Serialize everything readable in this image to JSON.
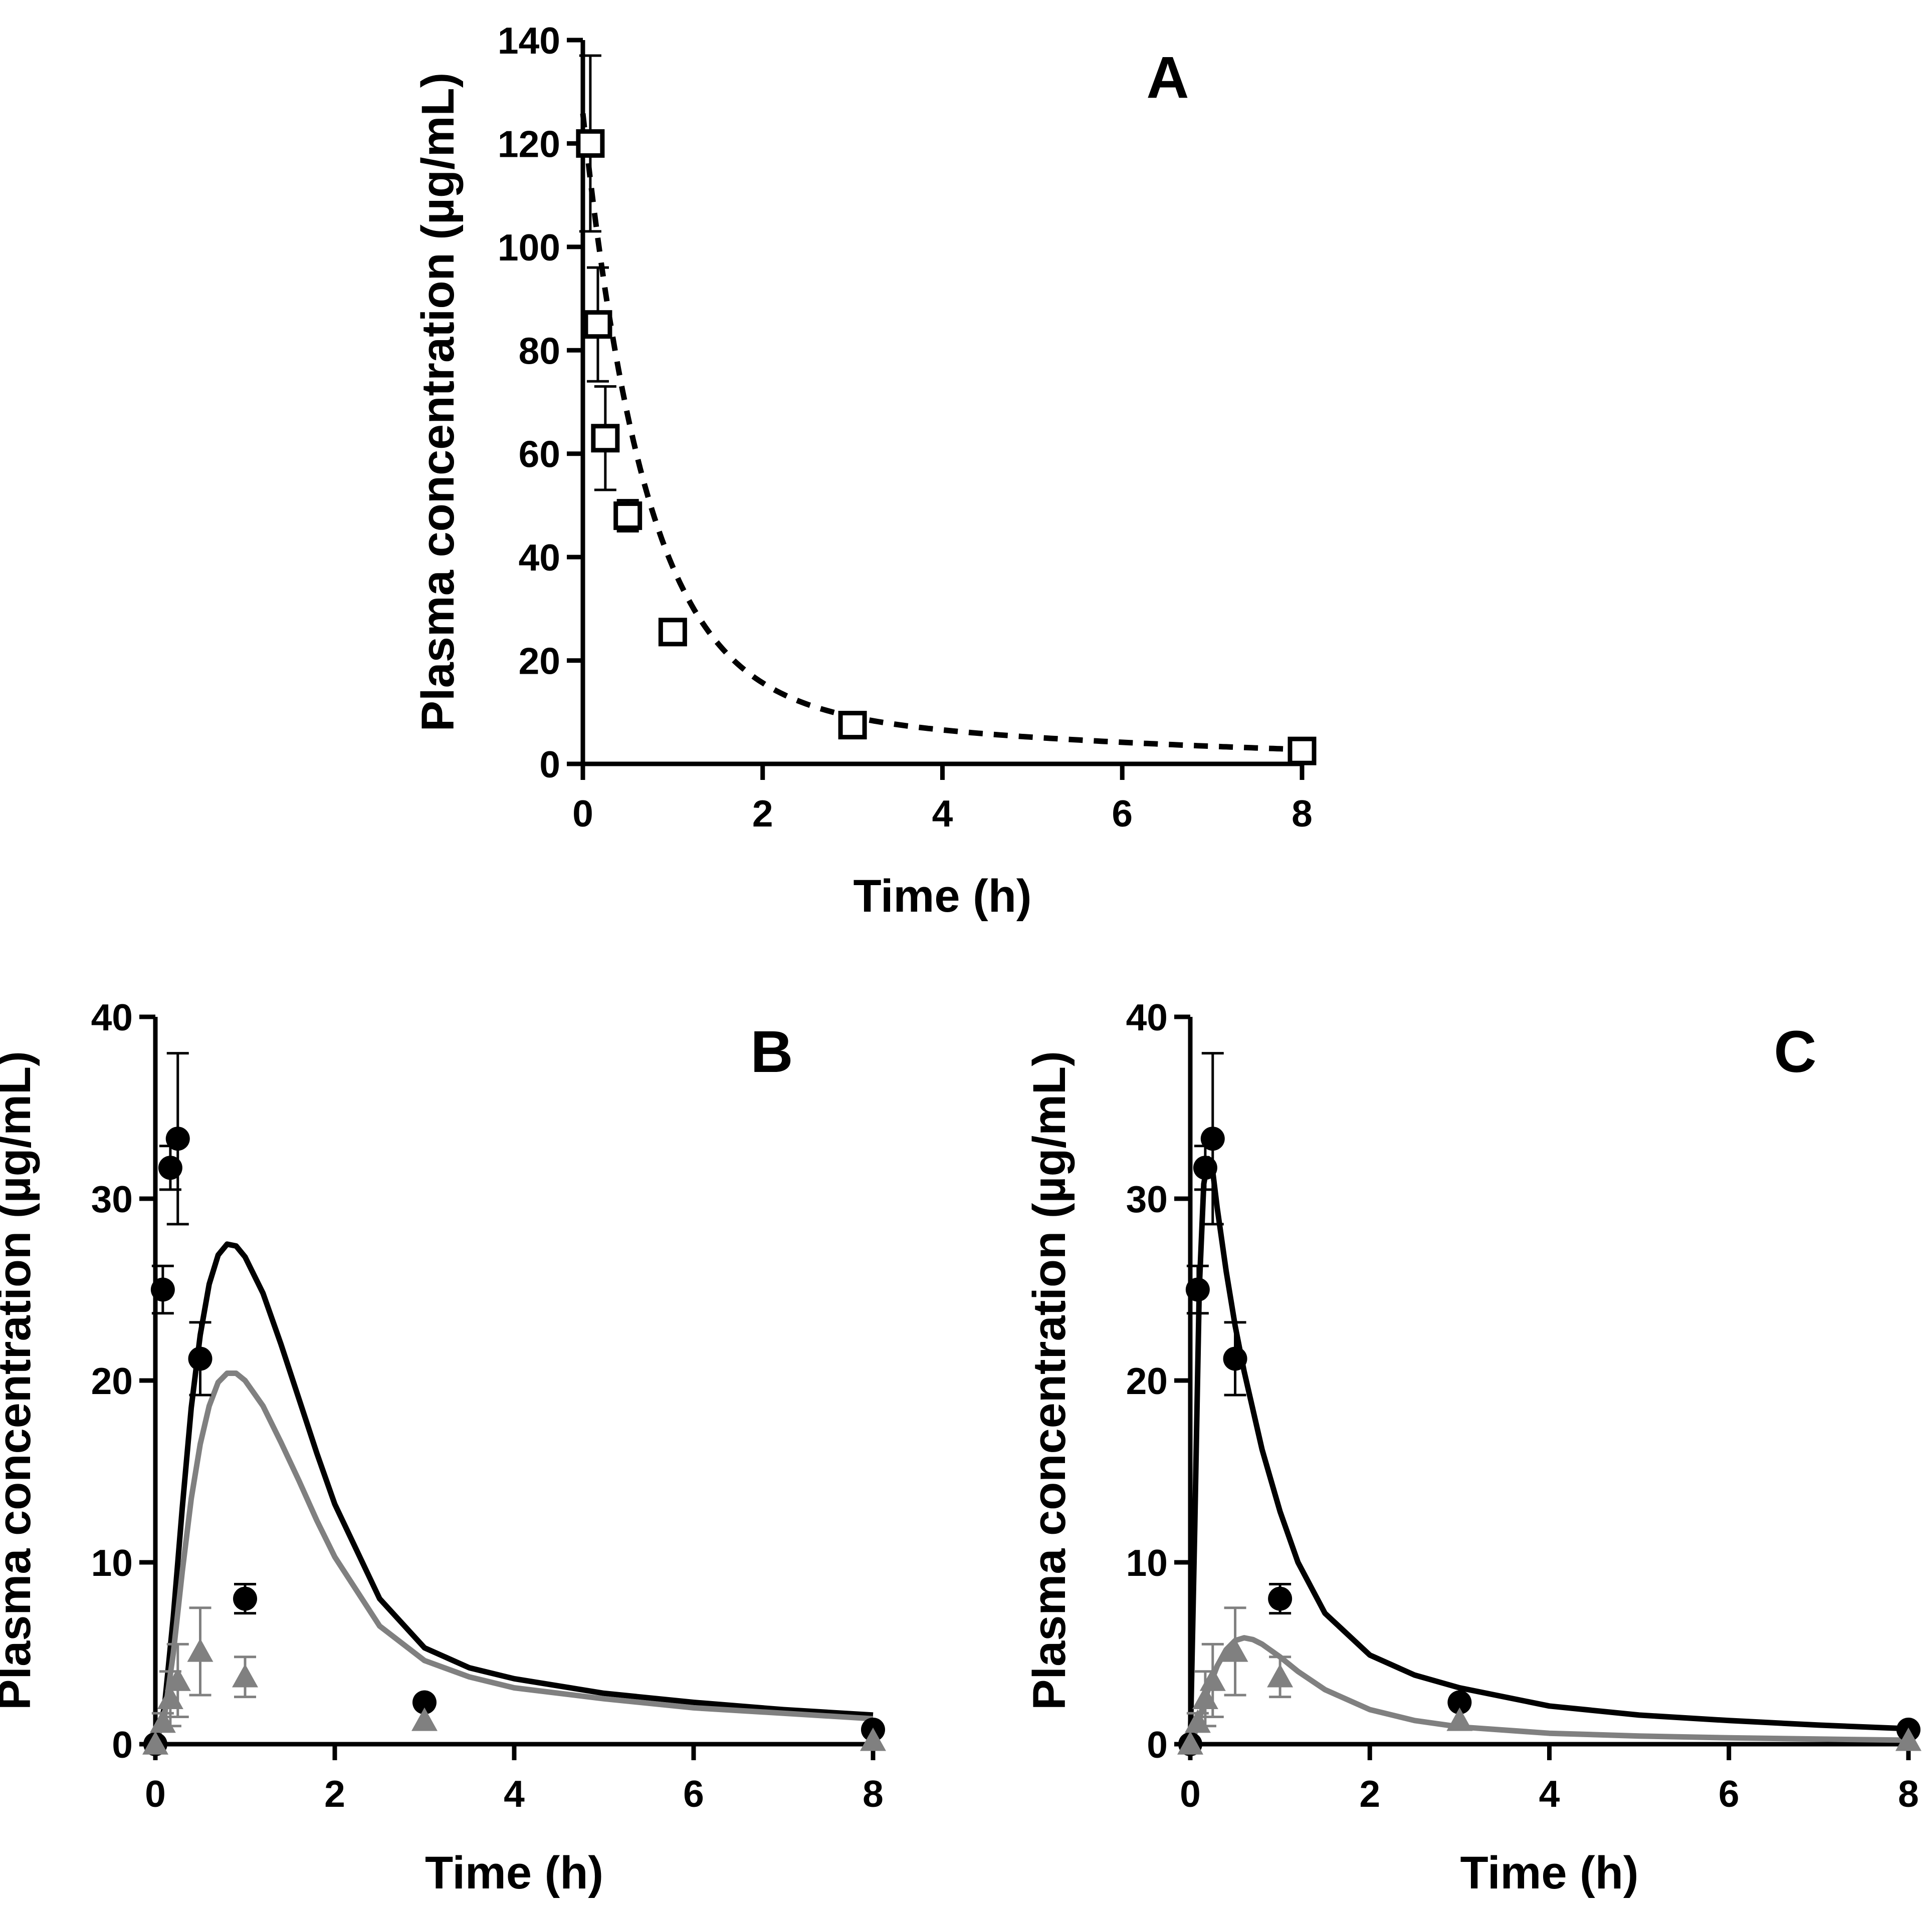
{
  "figure": {
    "description_free": true,
    "colors": {
      "black": "#000000",
      "grey": "#808080"
    }
  },
  "chart_data": [
    {
      "panel": "A",
      "type": "scatter",
      "title": "A",
      "xlabel": "Time (h)",
      "ylabel": "Plasma concentration (µg/mL)",
      "xlim": [
        0,
        8
      ],
      "ylim": [
        0,
        140
      ],
      "xticks": [
        0,
        2,
        4,
        6,
        8
      ],
      "yticks": [
        0,
        20,
        40,
        60,
        80,
        100,
        120,
        140
      ],
      "series": [
        {
          "name": "observed",
          "marker": "square-open",
          "color": "#000000",
          "x": [
            0.083,
            0.167,
            0.25,
            0.5,
            1,
            3,
            8
          ],
          "y": [
            120,
            85,
            63,
            48,
            25.5,
            7.5,
            2.5
          ],
          "err": [
            17,
            11,
            10,
            3,
            1.5,
            1,
            0.5
          ]
        },
        {
          "name": "fit",
          "line": "dashed",
          "color": "#000000",
          "curve": {
            "model": "biexponential",
            "terms": [
              {
                "A": 112,
                "k": 1.43
              },
              {
                "A": 13.8,
                "k": 0.2
              }
            ]
          }
        }
      ]
    },
    {
      "panel": "B",
      "type": "scatter",
      "title": "B",
      "xlabel": "Time (h)",
      "ylabel": "Plasma concentration (µg/mL)",
      "xlim": [
        0,
        8
      ],
      "ylim": [
        0,
        40
      ],
      "xticks": [
        0,
        2,
        4,
        6,
        8
      ],
      "yticks": [
        0,
        10,
        20,
        30,
        40
      ],
      "series": [
        {
          "name": "observed-black",
          "marker": "circle",
          "color": "#000000",
          "x": [
            0,
            0.083,
            0.167,
            0.25,
            0.5,
            1,
            3,
            8
          ],
          "y": [
            0,
            25,
            31.7,
            33.3,
            21.2,
            8,
            2.3,
            0.8
          ],
          "err": [
            0,
            1.3,
            1.2,
            4.7,
            2,
            0.8,
            0,
            0
          ]
        },
        {
          "name": "observed-grey",
          "marker": "triangle",
          "color": "#808080",
          "x": [
            0,
            0.083,
            0.167,
            0.25,
            0.5,
            1,
            3,
            8
          ],
          "y": [
            0,
            1.2,
            2.5,
            3.5,
            5.1,
            3.7,
            1.3,
            0.2
          ],
          "err": [
            0,
            0.5,
            1.5,
            2,
            2.4,
            1.1,
            0,
            0
          ]
        },
        {
          "name": "model-black",
          "line": "solid",
          "color": "#000000",
          "x": [
            0,
            0.1,
            0.2,
            0.3,
            0.4,
            0.5,
            0.6,
            0.7,
            0.8,
            0.9,
            1.0,
            1.2,
            1.4,
            1.6,
            1.8,
            2.0,
            2.5,
            3.0,
            3.5,
            4.0,
            5.0,
            6.0,
            7.0,
            8.0
          ],
          "y": [
            0,
            2,
            7,
            13,
            18.5,
            22.5,
            25.3,
            26.9,
            27.5,
            27.4,
            26.8,
            24.8,
            22,
            19,
            16,
            13.2,
            8,
            5.3,
            4.2,
            3.6,
            2.8,
            2.3,
            1.9,
            1.6
          ]
        },
        {
          "name": "model-grey",
          "line": "solid",
          "color": "#808080",
          "x": [
            0,
            0.1,
            0.2,
            0.3,
            0.4,
            0.5,
            0.6,
            0.7,
            0.8,
            0.9,
            1.0,
            1.2,
            1.4,
            1.6,
            1.8,
            2.0,
            2.5,
            3.0,
            3.5,
            4.0,
            5.0,
            6.0,
            7.0,
            8.0
          ],
          "y": [
            0,
            1.5,
            5,
            9.5,
            13.5,
            16.5,
            18.6,
            19.9,
            20.4,
            20.4,
            20,
            18.6,
            16.6,
            14.5,
            12.3,
            10.3,
            6.5,
            4.6,
            3.7,
            3.1,
            2.5,
            2.0,
            1.7,
            1.4
          ]
        }
      ]
    },
    {
      "panel": "C",
      "type": "scatter",
      "title": "C",
      "xlabel": "Time (h)",
      "ylabel": "Plasma concentration (µg/mL)",
      "xlim": [
        0,
        8
      ],
      "ylim": [
        0,
        40
      ],
      "xticks": [
        0,
        2,
        4,
        6,
        8
      ],
      "yticks": [
        0,
        10,
        20,
        30,
        40
      ],
      "series": [
        {
          "name": "observed-black",
          "marker": "circle",
          "color": "#000000",
          "x": [
            0,
            0.083,
            0.167,
            0.25,
            0.5,
            1,
            3,
            8
          ],
          "y": [
            0,
            25,
            31.7,
            33.3,
            21.2,
            8,
            2.3,
            0.8
          ],
          "err": [
            0,
            1.3,
            1.2,
            4.7,
            2,
            0.8,
            0,
            0
          ]
        },
        {
          "name": "observed-grey",
          "marker": "triangle",
          "color": "#808080",
          "x": [
            0,
            0.083,
            0.167,
            0.25,
            0.5,
            1,
            3,
            8
          ],
          "y": [
            0,
            1.2,
            2.5,
            3.5,
            5.1,
            3.7,
            1.3,
            0.2
          ],
          "err": [
            0,
            0.5,
            1.5,
            2,
            2.4,
            1.1,
            0,
            0
          ]
        },
        {
          "name": "model-black",
          "line": "solid",
          "color": "#000000",
          "x": [
            0,
            0.05,
            0.1,
            0.15,
            0.2,
            0.25,
            0.3,
            0.4,
            0.5,
            0.6,
            0.8,
            1.0,
            1.2,
            1.5,
            2.0,
            2.5,
            3.0,
            4.0,
            5.0,
            6.0,
            7.0,
            8.0
          ],
          "y": [
            0,
            12,
            25,
            30.8,
            32.2,
            31.5,
            29.5,
            26,
            23,
            20.5,
            16.2,
            12.8,
            10,
            7.2,
            4.9,
            3.8,
            3.1,
            2.1,
            1.6,
            1.3,
            1.05,
            0.85
          ]
        },
        {
          "name": "model-grey",
          "line": "solid",
          "color": "#808080",
          "x": [
            0,
            0.05,
            0.1,
            0.2,
            0.3,
            0.4,
            0.5,
            0.6,
            0.7,
            0.8,
            1.0,
            1.2,
            1.5,
            2.0,
            2.5,
            3.0,
            4.0,
            5.0,
            6.0,
            7.0,
            8.0
          ],
          "y": [
            0,
            0.6,
            1.4,
            3,
            4.3,
            5.2,
            5.7,
            5.85,
            5.75,
            5.5,
            4.8,
            4.0,
            3.0,
            1.9,
            1.3,
            0.95,
            0.6,
            0.45,
            0.35,
            0.28,
            0.22
          ]
        }
      ]
    }
  ]
}
